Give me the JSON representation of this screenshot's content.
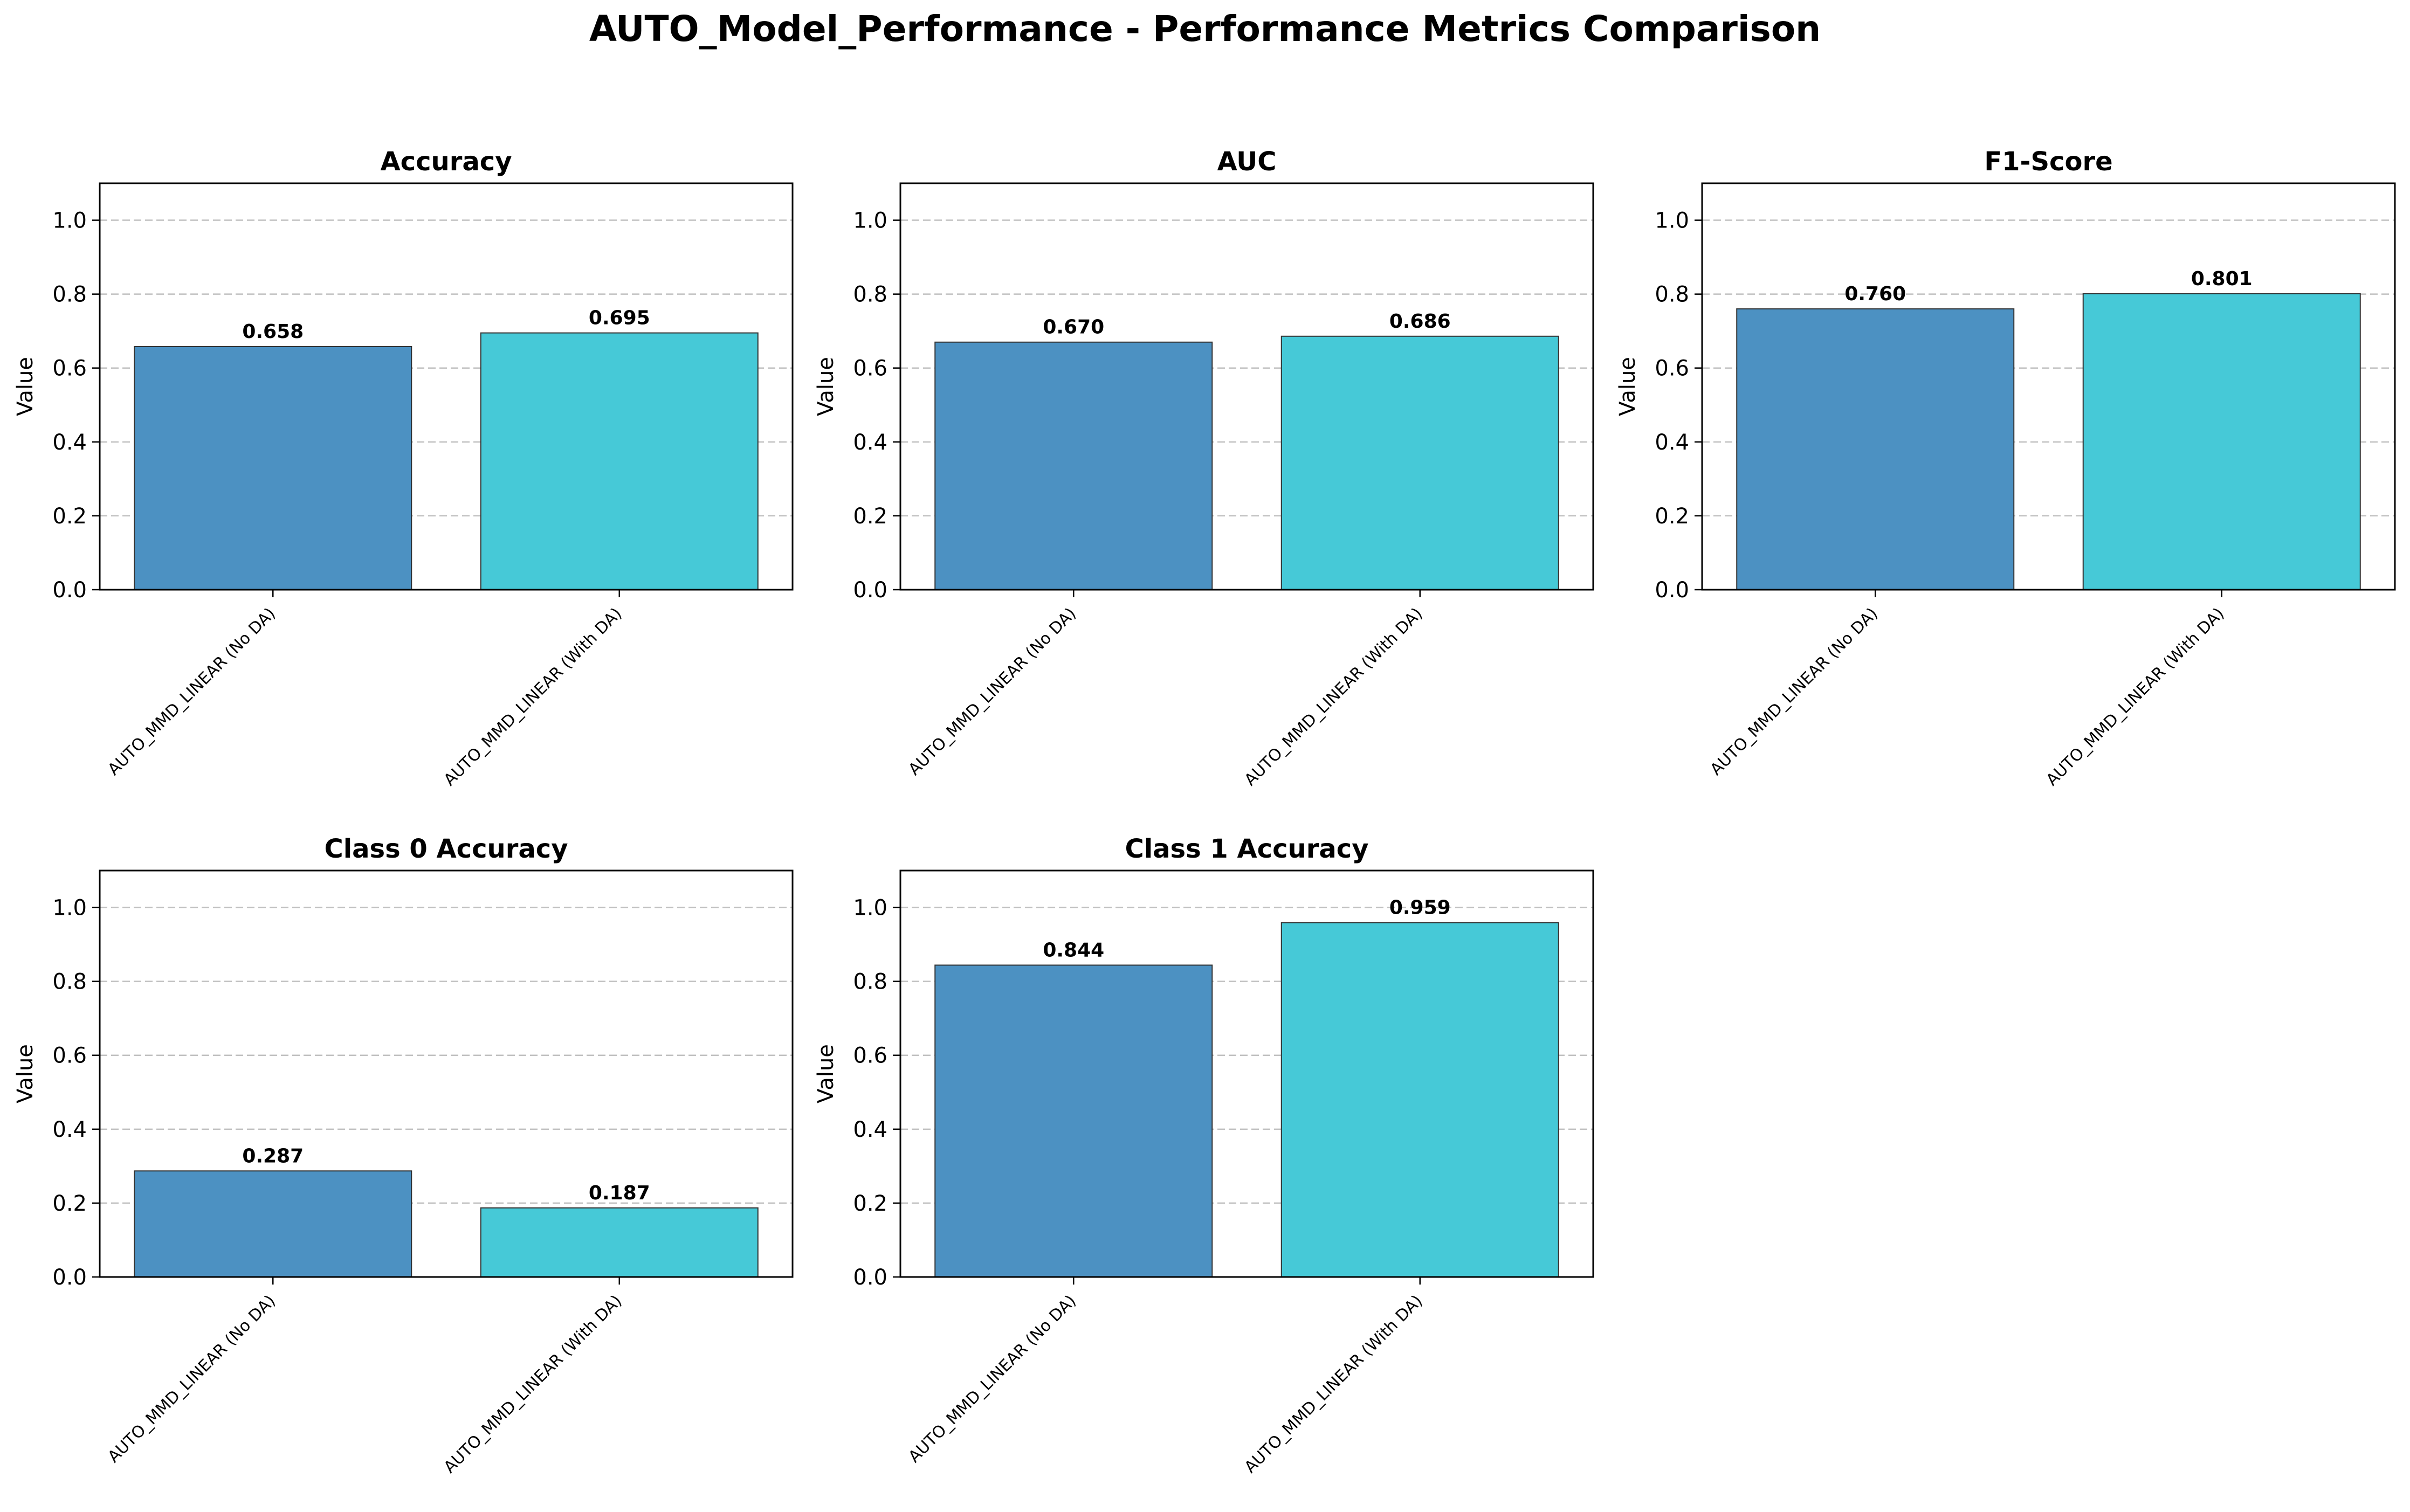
{
  "figure": {
    "title": "AUTO_Model_Performance - Performance Metrics Comparison"
  },
  "colors": {
    "no_da": "#4c91c2",
    "with_da": "#46c9d7",
    "grid": "#c0c0c0"
  },
  "chart_data": [
    {
      "type": "bar",
      "title": "Accuracy",
      "xlabel": "",
      "ylabel": "Value",
      "ylim": [
        0,
        1.1
      ],
      "yticks": [
        "0.0",
        "0.2",
        "0.4",
        "0.6",
        "0.8",
        "1.0"
      ],
      "grid": "y-dashed",
      "categories": [
        "AUTO_MMD_LINEAR (No DA)",
        "AUTO_MMD_LINEAR (With DA)"
      ],
      "values": [
        0.658,
        0.695
      ],
      "value_labels": [
        "0.658",
        "0.695"
      ]
    },
    {
      "type": "bar",
      "title": "AUC",
      "xlabel": "",
      "ylabel": "Value",
      "ylim": [
        0,
        1.1
      ],
      "yticks": [
        "0.0",
        "0.2",
        "0.4",
        "0.6",
        "0.8",
        "1.0"
      ],
      "grid": "y-dashed",
      "categories": [
        "AUTO_MMD_LINEAR (No DA)",
        "AUTO_MMD_LINEAR (With DA)"
      ],
      "values": [
        0.67,
        0.686
      ],
      "value_labels": [
        "0.670",
        "0.686"
      ]
    },
    {
      "type": "bar",
      "title": "F1-Score",
      "xlabel": "",
      "ylabel": "Value",
      "ylim": [
        0,
        1.1
      ],
      "yticks": [
        "0.0",
        "0.2",
        "0.4",
        "0.6",
        "0.8",
        "1.0"
      ],
      "grid": "y-dashed",
      "categories": [
        "AUTO_MMD_LINEAR (No DA)",
        "AUTO_MMD_LINEAR (With DA)"
      ],
      "values": [
        0.76,
        0.801
      ],
      "value_labels": [
        "0.760",
        "0.801"
      ]
    },
    {
      "type": "bar",
      "title": "Class 0 Accuracy",
      "xlabel": "",
      "ylabel": "Value",
      "ylim": [
        0,
        1.1
      ],
      "yticks": [
        "0.0",
        "0.2",
        "0.4",
        "0.6",
        "0.8",
        "1.0"
      ],
      "grid": "y-dashed",
      "categories": [
        "AUTO_MMD_LINEAR (No DA)",
        "AUTO_MMD_LINEAR (With DA)"
      ],
      "values": [
        0.287,
        0.187
      ],
      "value_labels": [
        "0.287",
        "0.187"
      ]
    },
    {
      "type": "bar",
      "title": "Class 1 Accuracy",
      "xlabel": "",
      "ylabel": "Value",
      "ylim": [
        0,
        1.1
      ],
      "yticks": [
        "0.0",
        "0.2",
        "0.4",
        "0.6",
        "0.8",
        "1.0"
      ],
      "grid": "y-dashed",
      "categories": [
        "AUTO_MMD_LINEAR (No DA)",
        "AUTO_MMD_LINEAR (With DA)"
      ],
      "values": [
        0.844,
        0.959
      ],
      "value_labels": [
        "0.844",
        "0.959"
      ]
    }
  ]
}
